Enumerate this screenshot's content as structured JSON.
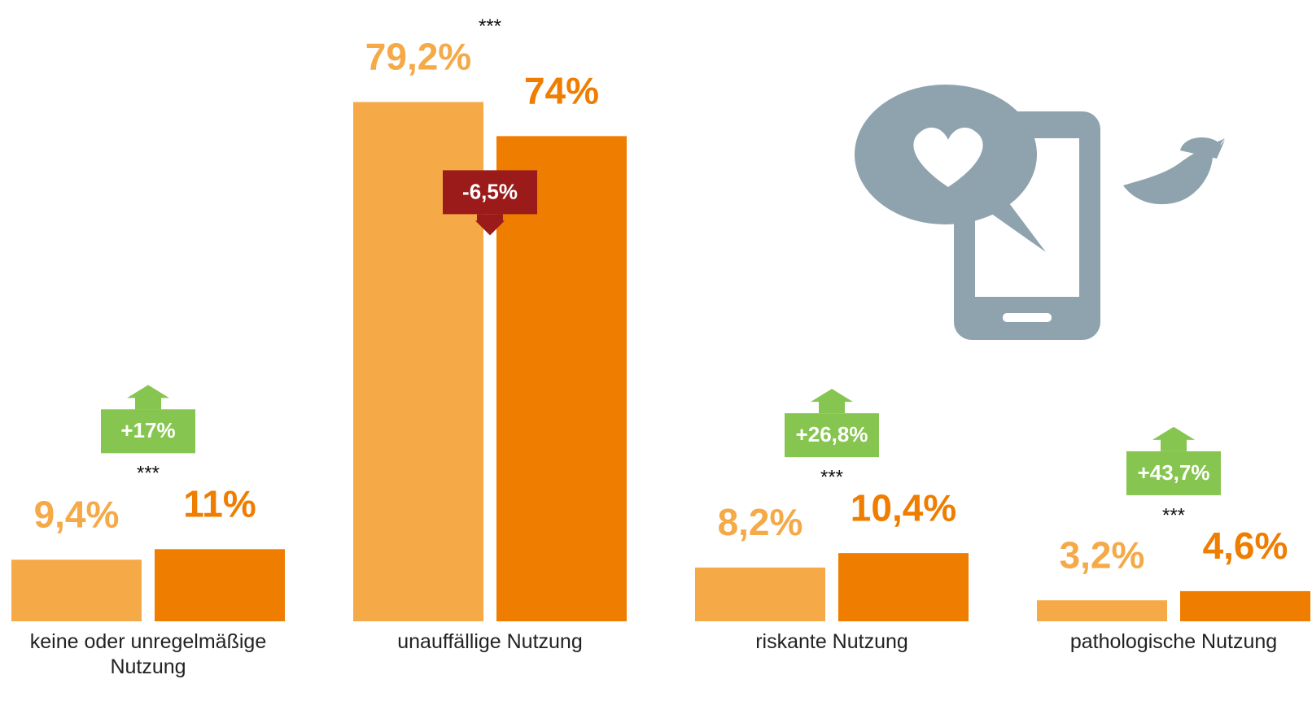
{
  "chart_data": {
    "type": "bar",
    "categories": [
      "keine oder unregelmäßige Nutzung",
      "unauffällige Nutzung",
      "riskante Nutzung",
      "pathologische Nutzung"
    ],
    "series": [
      {
        "color": "#f5a947",
        "values": [
          9.4,
          79.2,
          8.2,
          3.2
        ],
        "value_labels": [
          "9,4%",
          "79,2%",
          "8,2%",
          "3,2%"
        ]
      },
      {
        "color": "#ee7d00",
        "values": [
          11,
          74,
          10.4,
          4.6
        ],
        "value_labels": [
          "11%",
          "74%",
          "10,4%",
          "4,6%"
        ]
      }
    ],
    "change": {
      "values": [
        17,
        -6.5,
        26.8,
        43.7
      ],
      "labels": [
        "+17%",
        "-6,5%",
        "+26,8%",
        "+43,7%"
      ],
      "up_color": "#86c550",
      "down_color": "#9b1b1b"
    },
    "significance": [
      "***",
      "***",
      "***",
      "***"
    ],
    "ylim": [
      0,
      80
    ]
  }
}
